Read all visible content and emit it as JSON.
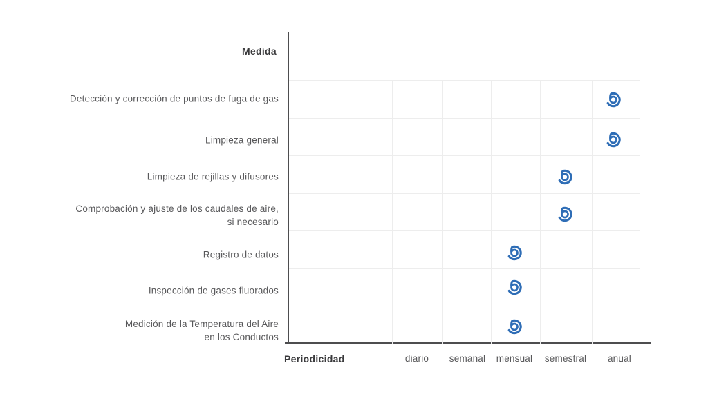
{
  "chart_data": {
    "type": "scatter",
    "title": "",
    "ylabel": "Medida",
    "xlabel": "Periodicidad",
    "x_categories": [
      "diario",
      "semanal",
      "mensual",
      "semestral",
      "anual"
    ],
    "rows": [
      {
        "measure": "Detección y corrección de puntos de fuga de gas",
        "lines": [
          "Detección y corrección de puntos de fuga de gas"
        ],
        "periodicity": "anual"
      },
      {
        "measure": "Limpieza general",
        "lines": [
          "Limpieza general"
        ],
        "periodicity": "anual"
      },
      {
        "measure": "Limpieza de rejillas y difusores",
        "lines": [
          "Limpieza de rejillas y difusores"
        ],
        "periodicity": "semestral"
      },
      {
        "measure": "Comprobación y ajuste de los caudales de aire, si necesario",
        "lines": [
          "Comprobación y ajuste de los caudales de aire,",
          "si necesario"
        ],
        "periodicity": "semestral"
      },
      {
        "measure": "Registro de datos",
        "lines": [
          "Registro de datos"
        ],
        "periodicity": "mensual"
      },
      {
        "measure": "Inspección de gases fluorados",
        "lines": [
          "Inspección de gases fluorados"
        ],
        "periodicity": "mensual"
      },
      {
        "measure": "Medición de la Temperatura del Aire en los Conductos",
        "lines": [
          "Medición de la Temperatura del Aire",
          "en los Conductos"
        ],
        "periodicity": "mensual"
      }
    ],
    "marker_icon": "spiral-target-icon",
    "colors": {
      "marker": "#2e6db6",
      "axis": "#4d4d4f",
      "grid": "#ededed",
      "text": "#58585a",
      "heading": "#3a3a3c"
    },
    "grid": true,
    "legend": false
  }
}
